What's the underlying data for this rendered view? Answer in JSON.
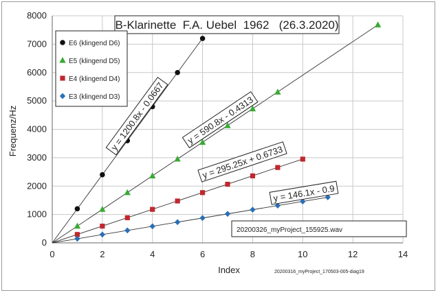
{
  "chart_data": {
    "type": "scatter",
    "title": "B-Klarinette  F.A. Uebel  1962   (26.3.2020)",
    "xlabel": "Index",
    "ylabel": "Frequenz/Hz",
    "xlim": [
      0,
      14
    ],
    "ylim": [
      0,
      8000
    ],
    "xticks": [
      0,
      2,
      4,
      6,
      8,
      10,
      12,
      14
    ],
    "yticks": [
      0,
      1000,
      2000,
      3000,
      4000,
      5000,
      6000,
      7000,
      8000
    ],
    "grid": true,
    "legend_position": "top-left",
    "series": [
      {
        "name": "E6 (klingend D6)",
        "marker": "circle",
        "color": "#111111",
        "x": [
          1,
          2,
          3,
          4,
          5,
          6
        ],
        "y": [
          1200,
          2400,
          3600,
          4800,
          6000,
          7200
        ],
        "slope": 1200.8,
        "intercept": -0.0667,
        "equation": "y = 1200.8x - 0.0667"
      },
      {
        "name": "E5 (klingend D5)",
        "marker": "triangle",
        "color": "#3aaa35",
        "x": [
          1,
          2,
          3,
          4,
          5,
          6,
          7,
          8,
          9,
          13
        ],
        "y": [
          590,
          1180,
          1770,
          2360,
          2950,
          3540,
          4130,
          4720,
          5310,
          7680
        ],
        "slope": 590.8,
        "intercept": -0.4313,
        "equation": "y = 590.8x - 0.4313"
      },
      {
        "name": "E4 (klingend D4)",
        "marker": "square",
        "color": "#c0282d",
        "x": [
          1,
          2,
          3,
          4,
          5,
          6,
          7,
          8,
          9,
          10
        ],
        "y": [
          295,
          590,
          885,
          1180,
          1475,
          1770,
          2065,
          2360,
          2655,
          2950
        ],
        "slope": 295.25,
        "intercept": 0.6733,
        "equation": "y = 295.25x + 0.6733"
      },
      {
        "name": "E3 (klingend D3)",
        "marker": "diamond",
        "color": "#2a6fb5",
        "x": [
          1,
          2,
          3,
          4,
          5,
          6,
          7,
          8,
          9,
          10,
          11
        ],
        "y": [
          146,
          292,
          438,
          584,
          730,
          876,
          1022,
          1168,
          1314,
          1460,
          1606
        ],
        "slope": 146.1,
        "intercept": -0.9,
        "equation": "y = 146.1x - 0.9"
      }
    ],
    "annotations": {
      "filename_box": "20200326_myProject_155925.wav",
      "footnote": "20200316_myProject_170503-005-diag19"
    }
  }
}
